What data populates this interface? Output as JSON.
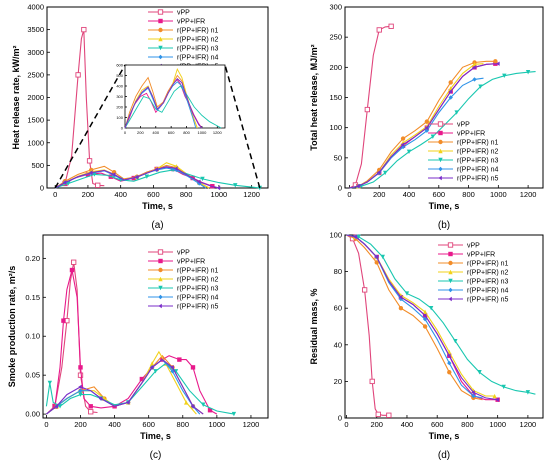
{
  "colors": {
    "vPP": "#e0457b",
    "vPP+IFR": "#e8198b",
    "r(PP+IFR) n1": "#f28c28",
    "r(PP+IFR) n2": "#f2d21b",
    "r(PP+IFR) n3": "#19c7b0",
    "r(PP+IFR) n4": "#2f93e8",
    "r(PP+IFR) n5": "#7a2cc9"
  },
  "chart_data": [
    {
      "id": "a",
      "type": "line",
      "panel_label": "(a)",
      "xlabel": "Time, s",
      "ylabel": "Heat release rate, kW/m²",
      "xlim": [
        -50,
        1300
      ],
      "ylim": [
        0,
        4000
      ],
      "xticks": [
        0,
        200,
        400,
        600,
        800,
        1000,
        1200
      ],
      "yticks": [
        0,
        500,
        1000,
        1500,
        2000,
        2500,
        3000,
        3500,
        4000
      ],
      "legend_position": "top-right",
      "series": [
        {
          "name": "vPP",
          "x": [
            0,
            60,
            100,
            140,
            160,
            175,
            190,
            210,
            230,
            260,
            300
          ],
          "y": [
            0,
            100,
            700,
            2500,
            3300,
            3500,
            2000,
            600,
            100,
            60,
            50
          ]
        },
        {
          "name": "vPP+IFR",
          "x": [
            0,
            60,
            120,
            200,
            280,
            340,
            400,
            480,
            560,
            620,
            680,
            720,
            780,
            840,
            900,
            960,
            1000
          ],
          "y": [
            0,
            100,
            220,
            300,
            330,
            250,
            150,
            220,
            350,
            420,
            460,
            420,
            300,
            220,
            120,
            40,
            0
          ]
        },
        {
          "name": "r(PP+IFR) n1",
          "x": [
            0,
            60,
            140,
            220,
            300,
            360,
            420,
            500,
            560,
            620,
            680,
            740,
            800,
            880,
            940
          ],
          "y": [
            0,
            150,
            300,
            400,
            480,
            350,
            200,
            250,
            350,
            420,
            500,
            450,
            300,
            120,
            0
          ]
        },
        {
          "name": "r(PP+IFR) n2",
          "x": [
            0,
            60,
            140,
            220,
            300,
            360,
            420,
            500,
            560,
            620,
            680,
            740,
            800,
            880,
            940
          ],
          "y": [
            0,
            120,
            260,
            360,
            400,
            300,
            180,
            240,
            330,
            420,
            560,
            480,
            320,
            120,
            0
          ]
        },
        {
          "name": "r(PP+IFR) n3",
          "x": [
            0,
            80,
            160,
            240,
            320,
            400,
            480,
            560,
            640,
            720,
            800,
            900,
            1000,
            1100,
            1200,
            1250
          ],
          "y": [
            0,
            100,
            200,
            300,
            280,
            180,
            150,
            250,
            350,
            400,
            320,
            200,
            120,
            60,
            20,
            0
          ]
        },
        {
          "name": "r(PP+IFR) n4",
          "x": [
            0,
            60,
            140,
            220,
            300,
            360,
            420,
            500,
            560,
            620,
            680,
            740,
            800,
            880,
            920
          ],
          "y": [
            0,
            120,
            250,
            330,
            380,
            280,
            170,
            240,
            330,
            400,
            440,
            400,
            280,
            100,
            0
          ]
        },
        {
          "name": "r(PP+IFR) n5",
          "x": [
            0,
            60,
            140,
            220,
            300,
            360,
            420,
            500,
            560,
            620,
            680,
            740,
            800,
            880,
            960,
            1000
          ],
          "y": [
            0,
            120,
            250,
            340,
            390,
            300,
            180,
            240,
            330,
            410,
            470,
            430,
            300,
            140,
            30,
            0
          ]
        }
      ],
      "inset": {
        "xlim": [
          0,
          1300
        ],
        "ylim": [
          0,
          600
        ],
        "xticks": [
          0,
          200,
          400,
          600,
          800,
          1000,
          1200
        ],
        "yticks": [
          0,
          100,
          200,
          300,
          400,
          500,
          600
        ]
      }
    },
    {
      "id": "b",
      "type": "line",
      "panel_label": "(b)",
      "xlabel": "Time, s",
      "ylabel": "Total heat release, MJ/m²",
      "xlim": [
        -30,
        1300
      ],
      "ylim": [
        0,
        300
      ],
      "xticks": [
        0,
        200,
        400,
        600,
        800,
        1000,
        1200
      ],
      "yticks": [
        0,
        50,
        100,
        150,
        200,
        250,
        300
      ],
      "legend_position": "bottom-right",
      "series": [
        {
          "name": "vPP",
          "x": [
            0,
            40,
            80,
            120,
            160,
            200,
            240,
            280
          ],
          "y": [
            0,
            5,
            40,
            130,
            220,
            262,
            267,
            268
          ]
        },
        {
          "name": "vPP+IFR",
          "x": [
            0,
            60,
            120,
            200,
            280,
            360,
            440,
            520,
            600,
            680,
            760,
            840,
            920,
            980
          ],
          "y": [
            0,
            3,
            10,
            25,
            50,
            70,
            85,
            100,
            130,
            160,
            185,
            200,
            205,
            206
          ]
        },
        {
          "name": "r(PP+IFR) n1",
          "x": [
            0,
            60,
            120,
            200,
            280,
            360,
            440,
            520,
            600,
            680,
            760,
            840,
            920,
            980
          ],
          "y": [
            0,
            3,
            12,
            30,
            60,
            82,
            95,
            110,
            145,
            175,
            200,
            208,
            210,
            210
          ]
        },
        {
          "name": "r(PP+IFR) n2",
          "x": [
            0,
            60,
            120,
            200,
            280,
            360,
            440,
            520,
            600,
            680,
            760,
            840,
            900
          ],
          "y": [
            0,
            3,
            10,
            26,
            55,
            75,
            88,
            102,
            135,
            165,
            190,
            205,
            206
          ]
        },
        {
          "name": "r(PP+IFR) n3",
          "x": [
            0,
            80,
            160,
            240,
            320,
            400,
            480,
            560,
            640,
            720,
            800,
            880,
            960,
            1040,
            1120,
            1200,
            1250
          ],
          "y": [
            0,
            3,
            10,
            25,
            45,
            60,
            72,
            85,
            105,
            125,
            148,
            168,
            180,
            186,
            190,
            192,
            193
          ]
        },
        {
          "name": "r(PP+IFR) n4",
          "x": [
            0,
            60,
            120,
            200,
            280,
            360,
            440,
            520,
            600,
            680,
            760,
            840,
            900
          ],
          "y": [
            0,
            3,
            10,
            25,
            50,
            68,
            80,
            95,
            125,
            150,
            170,
            180,
            182
          ]
        },
        {
          "name": "r(PP+IFR) n5",
          "x": [
            0,
            60,
            120,
            200,
            280,
            360,
            440,
            520,
            600,
            680,
            760,
            840,
            920,
            1000
          ],
          "y": [
            0,
            3,
            10,
            26,
            52,
            72,
            85,
            100,
            130,
            160,
            185,
            200,
            205,
            206
          ]
        }
      ]
    },
    {
      "id": "c",
      "type": "line",
      "panel_label": "(c)",
      "xlabel": "Time, s",
      "ylabel": "Smoke production rate, m²/s",
      "xlim": [
        -20,
        1300
      ],
      "ylim": [
        -0.005,
        0.23
      ],
      "xticks": [
        0,
        200,
        400,
        600,
        800,
        1000,
        1200
      ],
      "yticks": [
        0.0,
        0.05,
        0.1,
        0.15,
        0.2
      ],
      "legend_position": "top-right",
      "series": [
        {
          "name": "vPP",
          "x": [
            0,
            50,
            90,
            120,
            140,
            160,
            180,
            200,
            230,
            260,
            300
          ],
          "y": [
            0,
            0.01,
            0.06,
            0.12,
            0.17,
            0.195,
            0.16,
            0.05,
            0.01,
            0.003,
            0.002
          ]
        },
        {
          "name": "vPP+IFR",
          "x": [
            0,
            50,
            80,
            100,
            120,
            150,
            180,
            200,
            220,
            260,
            320,
            400,
            480,
            560,
            620,
            680,
            720,
            780,
            820,
            860,
            900,
            960,
            1000
          ],
          "y": [
            0,
            0.01,
            0.06,
            0.12,
            0.16,
            0.185,
            0.15,
            0.06,
            0.02,
            0.01,
            0.008,
            0.01,
            0.02,
            0.045,
            0.06,
            0.07,
            0.075,
            0.07,
            0.07,
            0.06,
            0.03,
            0.005,
            0
          ]
        },
        {
          "name": "r(PP+IFR) n1",
          "x": [
            0,
            60,
            120,
            200,
            280,
            340,
            400,
            480,
            560,
            620,
            680,
            740,
            800,
            860,
            920
          ],
          "y": [
            0,
            0.01,
            0.02,
            0.03,
            0.035,
            0.02,
            0.01,
            0.015,
            0.04,
            0.06,
            0.075,
            0.06,
            0.035,
            0.01,
            0
          ]
        },
        {
          "name": "r(PP+IFR) n2",
          "x": [
            0,
            60,
            120,
            200,
            280,
            340,
            400,
            480,
            560,
            620,
            660,
            700,
            760,
            820,
            880
          ],
          "y": [
            0,
            0.01,
            0.02,
            0.03,
            0.03,
            0.02,
            0.01,
            0.015,
            0.04,
            0.065,
            0.08,
            0.065,
            0.04,
            0.015,
            0
          ]
        },
        {
          "name": "r(PP+IFR) n3",
          "x": [
            0,
            20,
            40,
            80,
            140,
            200,
            260,
            320,
            400,
            480,
            560,
            640,
            700,
            760,
            840,
            920,
            1000,
            1100
          ],
          "y": [
            0.01,
            0.04,
            0.015,
            0.01,
            0.02,
            0.025,
            0.025,
            0.02,
            0.012,
            0.015,
            0.035,
            0.055,
            0.065,
            0.055,
            0.03,
            0.012,
            0.004,
            0
          ]
        },
        {
          "name": "r(PP+IFR) n4",
          "x": [
            0,
            60,
            120,
            200,
            260,
            320,
            400,
            480,
            560,
            620,
            680,
            740,
            800,
            860,
            900
          ],
          "y": [
            0,
            0.01,
            0.02,
            0.03,
            0.03,
            0.02,
            0.01,
            0.015,
            0.04,
            0.06,
            0.07,
            0.055,
            0.03,
            0.01,
            0
          ]
        },
        {
          "name": "r(PP+IFR) n5",
          "x": [
            0,
            60,
            120,
            200,
            260,
            320,
            400,
            480,
            560,
            620,
            680,
            740,
            800,
            860,
            920
          ],
          "y": [
            0,
            0.01,
            0.025,
            0.035,
            0.03,
            0.02,
            0.01,
            0.015,
            0.04,
            0.06,
            0.07,
            0.06,
            0.035,
            0.01,
            0
          ]
        }
      ]
    },
    {
      "id": "d",
      "type": "line",
      "panel_label": "(d)",
      "xlabel": "Time, s",
      "ylabel": "Residual mass, %",
      "xlim": [
        -10,
        1300
      ],
      "ylim": [
        0,
        100
      ],
      "xticks": [
        0,
        200,
        400,
        600,
        800,
        1000,
        1200
      ],
      "yticks": [
        0,
        20,
        40,
        60,
        80,
        100
      ],
      "legend_position": "top-right",
      "series": [
        {
          "name": "vPP",
          "x": [
            0,
            40,
            80,
            120,
            150,
            170,
            190,
            210,
            240,
            280
          ],
          "y": [
            100,
            98,
            90,
            70,
            45,
            20,
            5,
            2,
            1.5,
            1.5
          ]
        },
        {
          "name": "vPP+IFR",
          "x": [
            0,
            60,
            120,
            200,
            280,
            360,
            440,
            520,
            600,
            680,
            760,
            840,
            920,
            1000
          ],
          "y": [
            100,
            99,
            95,
            88,
            75,
            66,
            62,
            56,
            46,
            34,
            20,
            12,
            10,
            10
          ]
        },
        {
          "name": "r(PP+IFR) n1",
          "x": [
            0,
            60,
            120,
            200,
            280,
            360,
            440,
            520,
            600,
            680,
            760,
            840,
            900
          ],
          "y": [
            100,
            98,
            93,
            85,
            70,
            60,
            56,
            50,
            38,
            25,
            15,
            11,
            10
          ]
        },
        {
          "name": "r(PP+IFR) n2",
          "x": [
            0,
            60,
            120,
            200,
            280,
            360,
            440,
            520,
            600,
            680,
            760,
            840,
            920,
            980
          ],
          "y": [
            100,
            99,
            95,
            88,
            76,
            67,
            63,
            58,
            48,
            36,
            24,
            15,
            12,
            12
          ]
        },
        {
          "name": "r(PP+IFR) n3",
          "x": [
            0,
            80,
            160,
            240,
            320,
            400,
            480,
            560,
            640,
            720,
            800,
            880,
            960,
            1040,
            1120,
            1200,
            1250
          ],
          "y": [
            100,
            99,
            95,
            88,
            76,
            68,
            65,
            60,
            52,
            42,
            32,
            25,
            20,
            17,
            15,
            14,
            13
          ]
        },
        {
          "name": "r(PP+IFR) n4",
          "x": [
            0,
            60,
            120,
            200,
            280,
            360,
            440,
            520,
            600,
            680,
            760,
            840,
            900
          ],
          "y": [
            100,
            99,
            95,
            88,
            74,
            65,
            60,
            54,
            43,
            30,
            18,
            12,
            11
          ]
        },
        {
          "name": "r(PP+IFR) n5",
          "x": [
            0,
            60,
            120,
            200,
            280,
            360,
            440,
            520,
            600,
            680,
            760,
            840,
            920,
            1000
          ],
          "y": [
            100,
            99,
            95,
            88,
            75,
            66,
            62,
            56,
            46,
            34,
            22,
            14,
            11,
            10
          ]
        }
      ]
    }
  ]
}
